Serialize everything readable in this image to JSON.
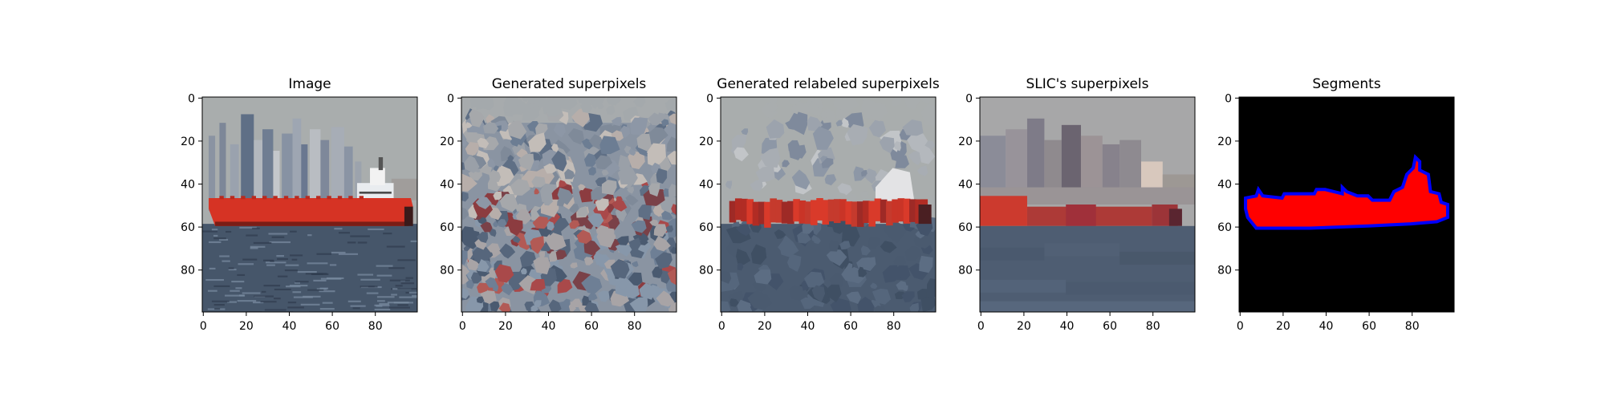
{
  "figure": {
    "panels": [
      {
        "title": "Image",
        "kind": "photo"
      },
      {
        "title": "Generated superpixels",
        "kind": "superpixels"
      },
      {
        "title": "Generated relabeled superpixels",
        "kind": "relabeled"
      },
      {
        "title": "SLIC's superpixels",
        "kind": "slic"
      },
      {
        "title": "Segments",
        "kind": "segments"
      }
    ],
    "axes": {
      "x_ticks": [
        "0",
        "20",
        "40",
        "60",
        "80"
      ],
      "y_ticks": [
        "0",
        "20",
        "40",
        "60",
        "80"
      ],
      "xlim": [
        0,
        100
      ],
      "ylim": [
        100,
        0
      ]
    },
    "colors": {
      "sky": "#a9adad",
      "water": "#46566a",
      "ship_hull": "#d63324",
      "segment_fill": "#ff0000",
      "segment_border": "#0000ff",
      "segment_background": "#000000"
    }
  }
}
